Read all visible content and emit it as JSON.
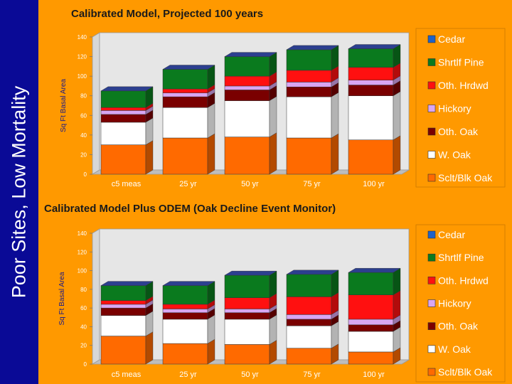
{
  "slide": {
    "sidebar_title": "Poor Sites, Low Mortality",
    "colors": {
      "background": "#ff9900",
      "sidebar": "#0a0a96"
    }
  },
  "series_colors": {
    "Cedar": "#1f62c9",
    "Shrtlf Pine": "#0a7a1e",
    "Oth. Hrdwd": "#ff1010",
    "Hickory": "#d9a6f2",
    "Oth. Oak": "#7a0000",
    "W. Oak": "#ffffff",
    "Sclt/Blk Oak": "#ff6a00"
  },
  "chart_data": [
    {
      "type": "bar",
      "stacked": true,
      "title": "Calibrated Model, Projected 100 years",
      "xlabel": "",
      "ylabel": "Sq Ft Basal Area",
      "ylim": [
        0,
        140
      ],
      "yticks": [
        "0",
        "20",
        "40",
        "60",
        "80",
        "100",
        "120",
        "140"
      ],
      "categories": [
        "c5 meas",
        "25 yr",
        "50 yr",
        "75 yr",
        "100 yr"
      ],
      "legend_order": [
        "Cedar",
        "Shrtlf Pine",
        "Oth. Hrdwd",
        "Hickory",
        "Oth. Oak",
        "W. Oak",
        "Sclt/Blk Oak"
      ],
      "series": [
        {
          "name": "Sclt/Blk Oak",
          "values": [
            30,
            37,
            38,
            37,
            35
          ]
        },
        {
          "name": "W. Oak",
          "values": [
            23,
            31,
            37,
            42,
            45
          ]
        },
        {
          "name": "Oth. Oak",
          "values": [
            8,
            11,
            11,
            10,
            11
          ]
        },
        {
          "name": "Hickory",
          "values": [
            4,
            4,
            4,
            5,
            5
          ]
        },
        {
          "name": "Oth. Hrdwd",
          "values": [
            3,
            4,
            10,
            12,
            13
          ]
        },
        {
          "name": "Shrtlf Pine",
          "values": [
            17,
            20,
            20,
            21,
            19
          ]
        },
        {
          "name": "Cedar",
          "values": [
            0,
            0,
            0,
            0,
            0
          ]
        }
      ]
    },
    {
      "type": "bar",
      "stacked": true,
      "title": "Calibrated Model Plus ODEM (Oak Decline Event Monitor)",
      "xlabel": "",
      "ylabel": "Sq Ft Basal Area",
      "ylim": [
        0,
        140
      ],
      "yticks": [
        "0",
        "20",
        "40",
        "60",
        "80",
        "100",
        "120",
        "140"
      ],
      "categories": [
        "c5 meas",
        "25 yr",
        "50 yr",
        "75 yr",
        "100 yr"
      ],
      "legend_order": [
        "Cedar",
        "Shrtlf Pine",
        "Oth. Hrdwd",
        "Hickory",
        "Oth. Oak",
        "W. Oak",
        "Sclt/Blk Oak"
      ],
      "series": [
        {
          "name": "Sclt/Blk Oak",
          "values": [
            30,
            22,
            21,
            17,
            13
          ]
        },
        {
          "name": "W. Oak",
          "values": [
            22,
            26,
            27,
            24,
            22
          ]
        },
        {
          "name": "Oth. Oak",
          "values": [
            8,
            7,
            7,
            7,
            7
          ]
        },
        {
          "name": "Hickory",
          "values": [
            4,
            4,
            4,
            5,
            6
          ]
        },
        {
          "name": "Oth. Hrdwd",
          "values": [
            4,
            5,
            12,
            19,
            26
          ]
        },
        {
          "name": "Shrtlf Pine",
          "values": [
            16,
            20,
            24,
            24,
            24
          ]
        },
        {
          "name": "Cedar",
          "values": [
            0,
            0,
            0,
            0,
            0
          ]
        }
      ]
    }
  ]
}
